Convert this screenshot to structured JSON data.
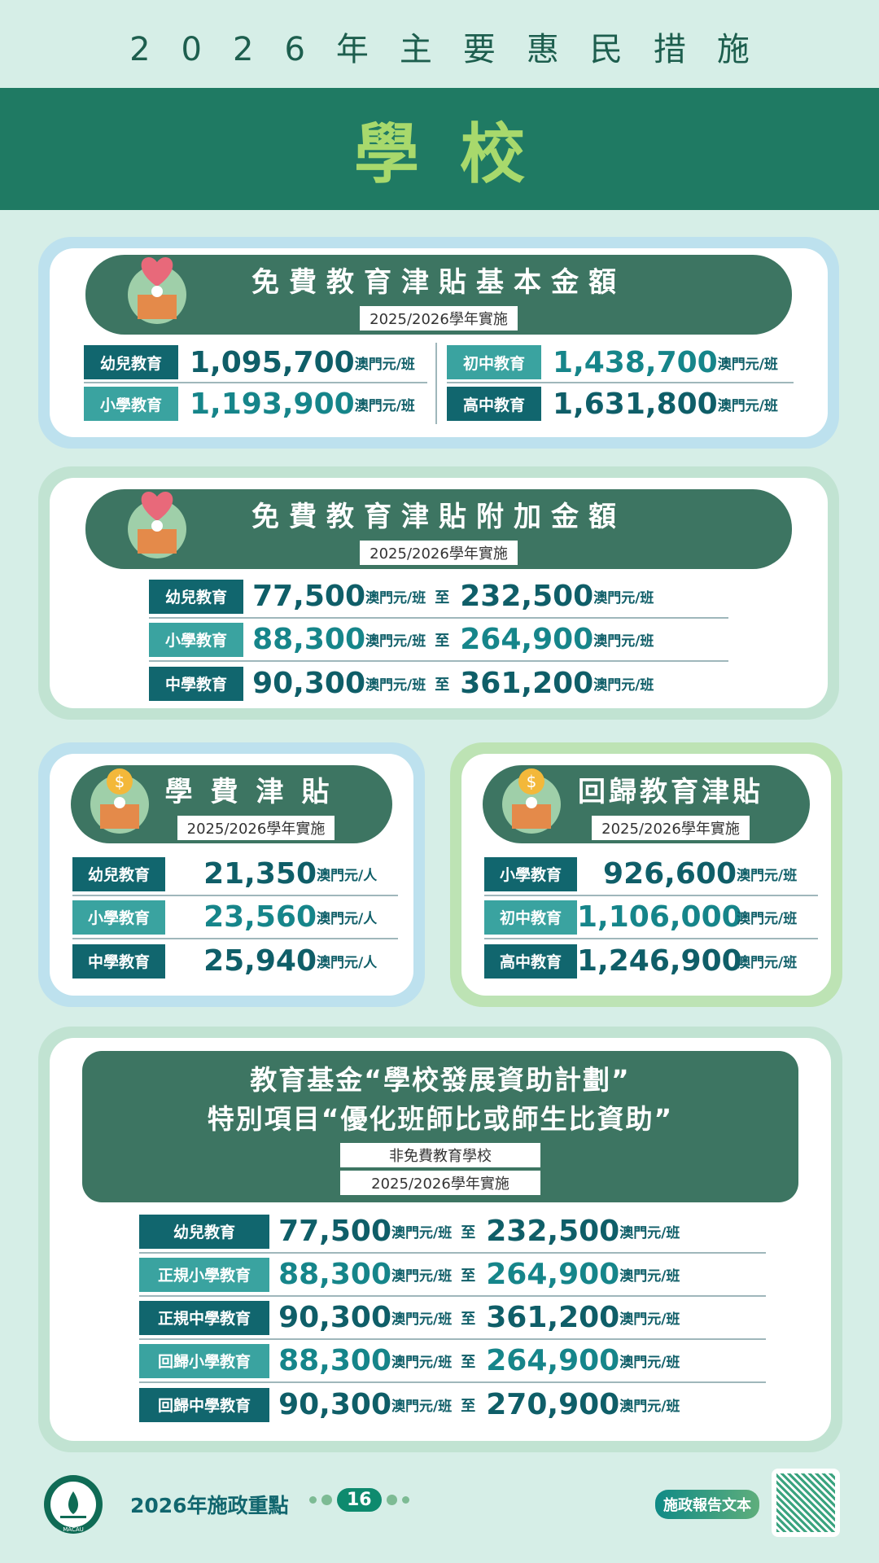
{
  "header": {
    "title": "2026年主要惠民措施",
    "section": "學校"
  },
  "basic": {
    "title": "免費教育津貼基本金額",
    "sub": "2025/2026學年實施",
    "unit": "澳門元/班",
    "left": [
      {
        "label": "幼兒教育",
        "value": "1,095,700"
      },
      {
        "label": "小學教育",
        "value": "1,193,900"
      }
    ],
    "right": [
      {
        "label": "初中教育",
        "value": "1,438,700"
      },
      {
        "label": "高中教育",
        "value": "1,631,800"
      }
    ]
  },
  "extra": {
    "title": "免費教育津貼附加金額",
    "sub": "2025/2026學年實施",
    "unit": "澳門元/班",
    "to": "至",
    "rows": [
      {
        "label": "幼兒教育",
        "min": "77,500",
        "max": "232,500"
      },
      {
        "label": "小學教育",
        "min": "88,300",
        "max": "264,900"
      },
      {
        "label": "中學教育",
        "min": "90,300",
        "max": "361,200"
      }
    ]
  },
  "tuition": {
    "title": "學費津貼",
    "sub": "2025/2026學年實施",
    "unit": "澳門元/人",
    "rows": [
      {
        "label": "幼兒教育",
        "value": "21,350"
      },
      {
        "label": "小學教育",
        "value": "23,560"
      },
      {
        "label": "中學教育",
        "value": "25,940"
      }
    ]
  },
  "returning": {
    "title": "回歸教育津貼",
    "sub": "2025/2026學年實施",
    "unit": "澳門元/班",
    "rows": [
      {
        "label": "小學教育",
        "value": "926,600"
      },
      {
        "label": "初中教育",
        "value": "1,106,000"
      },
      {
        "label": "高中教育",
        "value": "1,246,900"
      }
    ]
  },
  "fund": {
    "title1": "教育基金“學校發展資助計劃”",
    "title2": "特別項目“優化班師比或師生比資助”",
    "sub1": "非免費教育學校",
    "sub2": "2025/2026學年實施",
    "unit": "澳門元/班",
    "to": "至",
    "rows": [
      {
        "label": "幼兒教育",
        "min": "77,500",
        "max": "232,500"
      },
      {
        "label": "正規小學教育",
        "min": "88,300",
        "max": "264,900"
      },
      {
        "label": "正規中學教育",
        "min": "90,300",
        "max": "361,200"
      },
      {
        "label": "回歸小學教育",
        "min": "88,300",
        "max": "264,900"
      },
      {
        "label": "回歸中學教育",
        "min": "90,300",
        "max": "270,900"
      }
    ]
  },
  "footer": {
    "emblem_text": "MACAU",
    "label": "2026年施政重點",
    "page": "16",
    "report_button": "施政報告文本"
  },
  "colors": {
    "bg": "#d6eee7",
    "band": "#1f7a63",
    "accent": "#a8d96c",
    "pill": "#3d7562",
    "teal_dark": "#11666e",
    "teal_light": "#3aa3a0"
  }
}
